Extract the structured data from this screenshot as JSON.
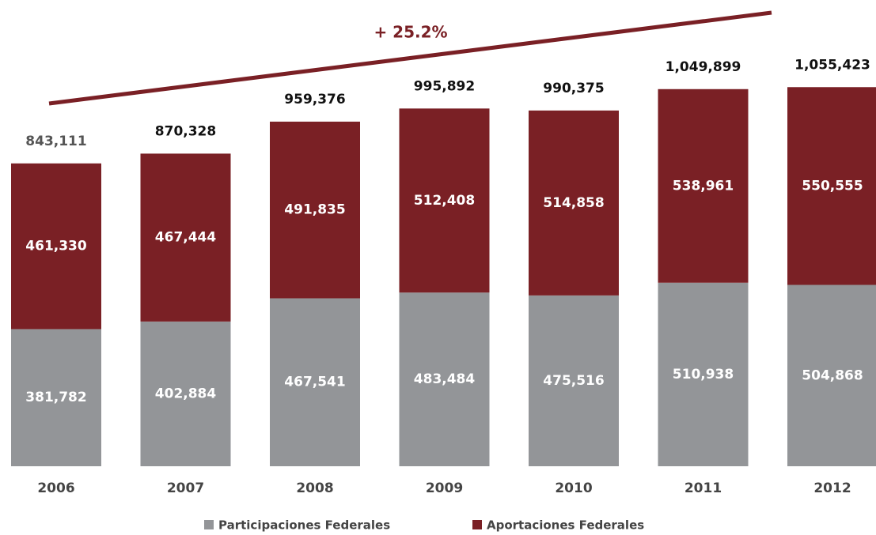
{
  "chart_data": {
    "type": "bar",
    "stacked": true,
    "annotation": "+ 25.2%",
    "categories": [
      "2006",
      "2007",
      "2008",
      "2009",
      "2010",
      "2011",
      "2012"
    ],
    "series": [
      {
        "name": "Participaciones Federales",
        "color": "#939598",
        "values": [
          381782,
          402884,
          467541,
          483484,
          475516,
          510938,
          504868
        ],
        "value_labels": [
          "381,782",
          "402,884",
          "467,541",
          "483,484",
          "475,516",
          "510,938",
          "504,868"
        ]
      },
      {
        "name": "Aportaciones Federales",
        "color": "#7a2025",
        "values": [
          461330,
          467444,
          491835,
          512408,
          514858,
          538961,
          550555
        ],
        "value_labels": [
          "461,330",
          "467,444",
          "491,835",
          "512,408",
          "514,858",
          "538,961",
          "550,555"
        ]
      }
    ],
    "totals": [
      843111,
      870328,
      959376,
      995892,
      990375,
      1049899,
      1055423
    ],
    "total_labels": [
      "843,111",
      "870,328",
      "959,376",
      "995,892",
      "990,375",
      "1,049,899",
      "1,055,423"
    ],
    "ylim": [
      0,
      1100000
    ]
  }
}
